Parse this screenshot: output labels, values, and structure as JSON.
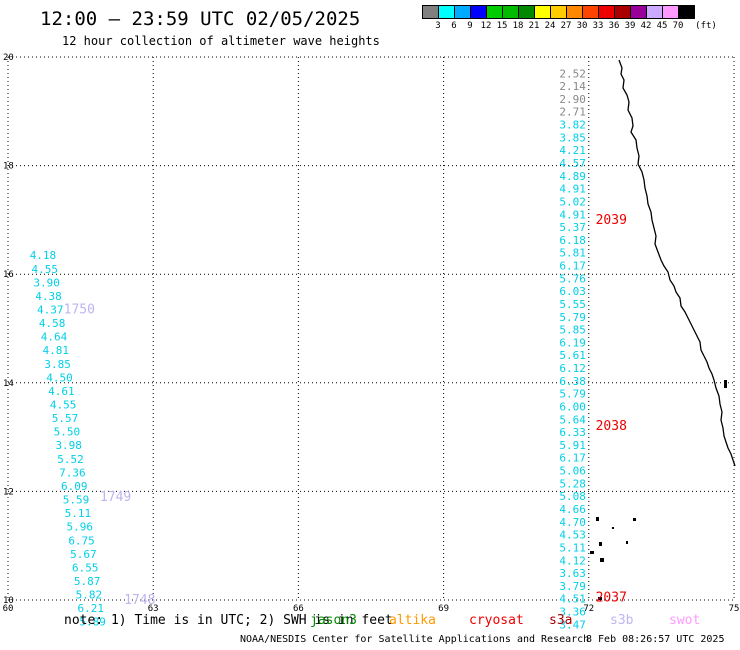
{
  "header": {
    "title": "12:00 – 23:59 UTC 02/05/2025",
    "subtitle": "12 hour collection of altimeter wave heights"
  },
  "color_scale": {
    "colors": [
      "#808080",
      "#00ffff",
      "#00aaff",
      "#0000ff",
      "#00cc00",
      "#00bb00",
      "#008800",
      "#ffff00",
      "#ffcc00",
      "#ff8800",
      "#ff4400",
      "#ee0000",
      "#aa0000",
      "#990099",
      "#ccaaff",
      "#ff99ff",
      "#000000"
    ],
    "labels": [
      "3",
      "6",
      "9",
      "12",
      "15",
      "18",
      "21",
      "24",
      "27",
      "30",
      "33",
      "36",
      "39",
      "42",
      "45",
      "70"
    ],
    "unit": "(ft)"
  },
  "map": {
    "lon_ticks": [
      "60",
      "63",
      "66",
      "69",
      "72",
      "75"
    ],
    "lat_ticks": [
      "20",
      "18",
      "16",
      "14",
      "12",
      "10"
    ],
    "lon_range": [
      60,
      75
    ],
    "lat_range": [
      10,
      20
    ],
    "satellite_colors": {
      "gray": "#888888",
      "cyan": "#00d0e8",
      "lavender": "#c0b4f0",
      "red": "#ee0000"
    },
    "tracks": [
      {
        "name": "track_2039",
        "lon": 71.5,
        "lat_start": 19.7,
        "lat_step": 0.236,
        "values": [
          "2.52",
          "2.14",
          "2.90",
          "2.71",
          "3.82",
          "3.85",
          "4.21",
          "4.57",
          "4.89",
          "4.91",
          "5.02",
          "4.91",
          "5.37",
          "6.18",
          "5.81",
          "6.17",
          "5.76",
          "6.03",
          "5.55",
          "5.79",
          "5.85",
          "6.19",
          "5.61",
          "6.12",
          "6.38",
          "5.79",
          "6.00",
          "5.64",
          "6.33",
          "5.91",
          "6.17",
          "5.06",
          "5.28",
          "5.08",
          "4.66",
          "4.70",
          "4.53",
          "5.11",
          "4.12",
          "3.63",
          "3.79",
          "4.51",
          "3.36",
          "3.47"
        ],
        "value_colors": [
          "gray",
          "gray",
          "gray",
          "gray",
          "cyan"
        ],
        "time_labels": [
          {
            "text": "2039",
            "lat": 17.0,
            "color": "red"
          },
          {
            "text": "2038",
            "lat": 13.2,
            "color": "red"
          },
          {
            "text": "2037",
            "lat": 10.05,
            "color": "red"
          }
        ]
      },
      {
        "name": "track_1750",
        "lon": 60.35,
        "lat_start": 16.35,
        "lat_step": 0.25,
        "lon_step": 0.038,
        "values": [
          "4.18",
          "4.55",
          "3.90",
          "4.38",
          "4.37",
          "4.58",
          "4.64",
          "4.81",
          "3.85",
          "4.50",
          "4.61",
          "4.55",
          "5.57",
          "5.50",
          "3.98",
          "5.52",
          "7.36",
          "6.09",
          "5.59",
          "5.11",
          "5.96",
          "6.75",
          "5.67",
          "6.55",
          "5.87",
          "5.82",
          "6.21",
          "5.89"
        ],
        "time_labels": [
          {
            "text": "1750",
            "lat": 15.35,
            "lon": 61.15,
            "color": "lavender"
          },
          {
            "text": "1749",
            "lat": 11.9,
            "lon": 61.9,
            "color": "lavender"
          },
          {
            "text": "1748",
            "lat": 10.0,
            "lon": 62.4,
            "color": "lavender"
          }
        ]
      }
    ]
  },
  "legend": {
    "note": "note: 1) Time is in UTC; 2) SWH is in feet",
    "satellites": [
      {
        "name": "jason3",
        "color": "#008800"
      },
      {
        "name": "altika",
        "color": "#ff9900"
      },
      {
        "name": "cryosat",
        "color": "#ee0000"
      },
      {
        "name": "s3a",
        "color": "#aa0000"
      },
      {
        "name": "s3b",
        "color": "#c0b4f0"
      },
      {
        "name": "swot",
        "color": "#ff99ff"
      }
    ]
  },
  "footer": {
    "credit": "NOAA/NESDIS Center for Satellite Applications and Research",
    "timestamp": "8 Feb 08:26:57 UTC 2025"
  }
}
